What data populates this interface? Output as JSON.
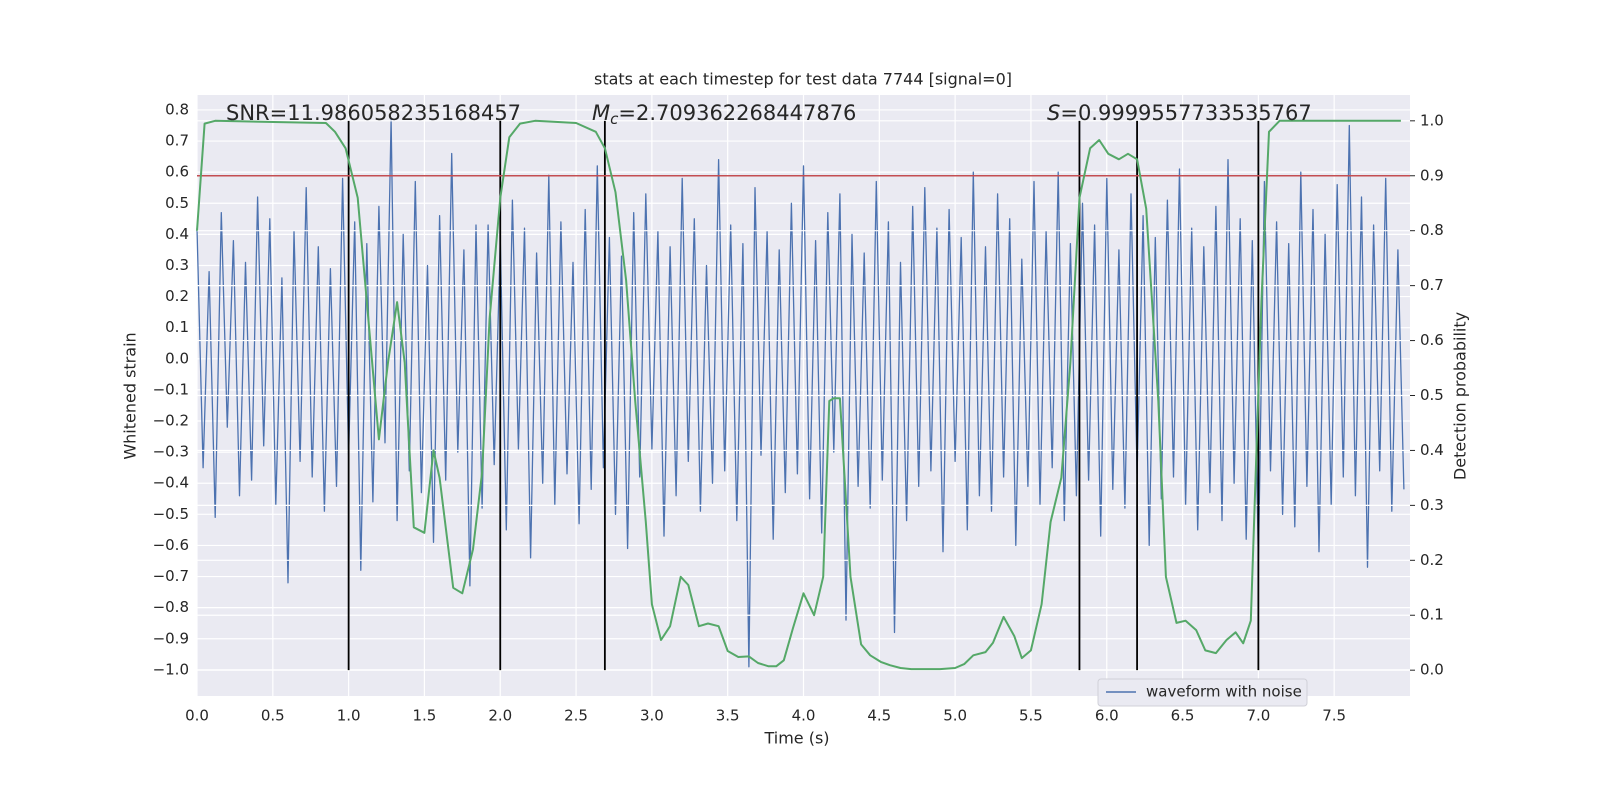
{
  "chart_data": {
    "type": "line",
    "title": "stats at each timestep for test data 7744 [signal=0]",
    "xlabel": "Time (s)",
    "ylabel": "Whitened strain",
    "y2label": "Detection probability",
    "xlim": [
      0,
      8
    ],
    "ylim": [
      -1.084,
      0.848
    ],
    "y2lim": [
      -0.047,
      1.047
    ],
    "xticks": [
      {
        "value": 0,
        "label": "0.0"
      },
      {
        "value": 0.5,
        "label": "0.5"
      },
      {
        "value": 1,
        "label": "1.0"
      },
      {
        "value": 1.5,
        "label": "1.5"
      },
      {
        "value": 2,
        "label": "2.0"
      },
      {
        "value": 2.5,
        "label": "2.5"
      },
      {
        "value": 3,
        "label": "3.0"
      },
      {
        "value": 3.5,
        "label": "3.5"
      },
      {
        "value": 4,
        "label": "4.0"
      },
      {
        "value": 4.5,
        "label": "4.5"
      },
      {
        "value": 5,
        "label": "5.0"
      },
      {
        "value": 5.5,
        "label": "5.5"
      },
      {
        "value": 6,
        "label": "6.0"
      },
      {
        "value": 6.5,
        "label": "6.5"
      },
      {
        "value": 7,
        "label": "7.0"
      },
      {
        "value": 7.5,
        "label": "7.5"
      }
    ],
    "yticks": [
      {
        "value": -1.0,
        "label": "−1.0"
      },
      {
        "value": -0.9,
        "label": "−0.9"
      },
      {
        "value": -0.8,
        "label": "−0.8"
      },
      {
        "value": -0.7,
        "label": "−0.7"
      },
      {
        "value": -0.6,
        "label": "−0.6"
      },
      {
        "value": -0.5,
        "label": "−0.5"
      },
      {
        "value": -0.4,
        "label": "−0.4"
      },
      {
        "value": -0.3,
        "label": "−0.3"
      },
      {
        "value": -0.2,
        "label": "−0.2"
      },
      {
        "value": -0.1,
        "label": "−0.1"
      },
      {
        "value": 0,
        "label": "0.0"
      },
      0.1,
      0.2,
      0.3,
      0.4,
      0.5,
      0.6,
      0.7,
      0.8
    ],
    "y2ticks": [
      {
        "value": 0,
        "label": "0.0"
      },
      0.1,
      0.2,
      0.3,
      0.4,
      0.5,
      0.6,
      0.7,
      0.8,
      0.9,
      {
        "value": 1,
        "label": "1.0"
      }
    ],
    "grid": true,
    "legend": "lower right",
    "series": [
      {
        "name": "waveform with noise",
        "color": "#4c72b0",
        "x": [
          0,
          0.04,
          0.08,
          0.12,
          0.16,
          0.2,
          0.24,
          0.28,
          0.32,
          0.36,
          0.4,
          0.44,
          0.48,
          0.52,
          0.56,
          0.6,
          0.64,
          0.68,
          0.72,
          0.76,
          0.8,
          0.84,
          0.88,
          0.92,
          0.96,
          1,
          1.04,
          1.08,
          1.12,
          1.16,
          1.2,
          1.24,
          1.28,
          1.32,
          1.36,
          1.4,
          1.44,
          1.48,
          1.52,
          1.56,
          1.6,
          1.64,
          1.68,
          1.72,
          1.76,
          1.8,
          1.84,
          1.88,
          1.92,
          1.96,
          2,
          2.04,
          2.08,
          2.12,
          2.16,
          2.2,
          2.24,
          2.28,
          2.32,
          2.36,
          2.4,
          2.44,
          2.48,
          2.52,
          2.56,
          2.6,
          2.64,
          2.68,
          2.72,
          2.76,
          2.8,
          2.84,
          2.88,
          2.92,
          2.96,
          3,
          3.04,
          3.08,
          3.12,
          3.16,
          3.2,
          3.24,
          3.28,
          3.32,
          3.36,
          3.4,
          3.44,
          3.48,
          3.52,
          3.56,
          3.6,
          3.64,
          3.68,
          3.72,
          3.76,
          3.8,
          3.84,
          3.88,
          3.92,
          3.96,
          4,
          4.04,
          4.08,
          4.12,
          4.16,
          4.2,
          4.24,
          4.28,
          4.32,
          4.36,
          4.4,
          4.44,
          4.48,
          4.52,
          4.56,
          4.6,
          4.64,
          4.68,
          4.72,
          4.76,
          4.8,
          4.84,
          4.88,
          4.92,
          4.96,
          5,
          5.04,
          5.08,
          5.12,
          5.16,
          5.2,
          5.24,
          5.28,
          5.32,
          5.36,
          5.4,
          5.44,
          5.48,
          5.52,
          5.56,
          5.6,
          5.64,
          5.68,
          5.72,
          5.76,
          5.8,
          5.84,
          5.88,
          5.92,
          5.96,
          6,
          6.04,
          6.08,
          6.12,
          6.16,
          6.2,
          6.24,
          6.28,
          6.32,
          6.36,
          6.4,
          6.44,
          6.48,
          6.52,
          6.56,
          6.6,
          6.64,
          6.68,
          6.72,
          6.76,
          6.8,
          6.84,
          6.88,
          6.92,
          6.96,
          7,
          7.04,
          7.08,
          7.12,
          7.16,
          7.2,
          7.24,
          7.28,
          7.32,
          7.36,
          7.4,
          7.44,
          7.48,
          7.52,
          7.56,
          7.6,
          7.64,
          7.68,
          7.72,
          7.76,
          7.8,
          7.84,
          7.88,
          7.92,
          7.96
        ],
        "values": [
          0.42,
          -0.35,
          0.28,
          -0.51,
          0.47,
          -0.22,
          0.38,
          -0.44,
          0.31,
          -0.39,
          0.52,
          -0.28,
          0.45,
          -0.47,
          0.26,
          -0.72,
          0.41,
          -0.33,
          0.55,
          -0.38,
          0.36,
          -0.49,
          0.29,
          -0.41,
          0.58,
          -0.31,
          0.44,
          -0.68,
          0.37,
          -0.46,
          0.49,
          -0.27,
          0.77,
          -0.52,
          0.4,
          -0.36,
          0.57,
          -0.43,
          0.3,
          -0.59,
          0.46,
          -0.39,
          0.66,
          -0.3,
          0.35,
          -0.73,
          0.43,
          -0.48,
          0.43,
          -0.34,
          0.38,
          -0.55,
          0.51,
          -0.29,
          0.42,
          -0.64,
          0.34,
          -0.4,
          0.59,
          -0.47,
          0.44,
          -0.37,
          0.31,
          -0.53,
          0.48,
          -0.42,
          0.62,
          -0.35,
          0.39,
          -0.5,
          0.33,
          -0.61,
          0.47,
          -0.38,
          0.53,
          -0.29,
          0.41,
          -0.57,
          0.36,
          -0.44,
          0.58,
          -0.33,
          0.45,
          -0.49,
          0.3,
          -0.4,
          0.64,
          -0.36,
          0.43,
          -0.52,
          0.37,
          -0.99,
          0.55,
          -0.31,
          0.41,
          -0.58,
          0.35,
          -0.43,
          0.5,
          -0.37,
          0.62,
          -0.45,
          0.38,
          -0.56,
          0.47,
          -0.3,
          0.53,
          -0.84,
          0.4,
          -0.41,
          0.34,
          -0.48,
          0.57,
          -0.39,
          0.44,
          -0.88,
          0.31,
          -0.52,
          0.49,
          -0.41,
          0.55,
          -0.36,
          0.42,
          -0.62,
          0.48,
          -0.33,
          0.39,
          -0.55,
          0.6,
          -0.44,
          0.36,
          -0.49,
          0.53,
          -0.38,
          0.45,
          -0.6,
          0.32,
          -0.41,
          0.57,
          -0.47,
          0.41,
          -0.35,
          0.6,
          -0.52,
          0.37,
          -0.44,
          0.5,
          -0.39,
          0.43,
          -0.57,
          0.58,
          -0.42,
          0.35,
          -0.48,
          0.53,
          -0.37,
          0.46,
          -0.6,
          0.39,
          -0.45,
          0.51,
          -0.38,
          0.61,
          -0.47,
          0.42,
          -0.55,
          0.36,
          -0.43,
          0.49,
          -0.52,
          0.64,
          -0.4,
          0.45,
          -0.58,
          0.38,
          -0.65,
          0.57,
          -0.36,
          0.44,
          -0.5,
          0.37,
          -0.54,
          0.6,
          -0.41,
          0.48,
          -0.62,
          0.4,
          -0.47,
          0.56,
          -0.38,
          0.75,
          -0.44,
          0.52,
          -0.67,
          0.43,
          -0.36,
          0.58,
          -0.49,
          0.35,
          -0.42
        ]
      },
      {
        "color": "#55a868",
        "axis": "y2",
        "x": [
          0,
          0.05,
          0.12,
          0.85,
          0.91,
          0.98,
          1.06,
          1.2,
          1.26,
          1.32,
          1.37,
          1.39,
          1.43,
          1.5,
          1.56,
          1.6,
          1.69,
          1.75,
          1.82,
          1.88,
          1.93,
          2.0,
          2.06,
          2.13,
          2.23,
          2.5,
          2.63,
          2.69,
          2.76,
          2.83,
          2.89,
          2.96,
          3.0,
          3.06,
          3.12,
          3.19,
          3.24,
          3.31,
          3.37,
          3.44,
          3.5,
          3.57,
          3.64,
          3.7,
          3.77,
          3.82,
          3.87,
          3.93,
          4.0,
          4.07,
          4.13,
          4.17,
          4.2,
          4.24,
          4.31,
          4.38,
          4.44,
          4.51,
          4.57,
          4.64,
          4.71,
          4.9,
          5.0,
          5.06,
          5.12,
          5.2,
          5.25,
          5.32,
          5.39,
          5.44,
          5.5,
          5.57,
          5.63,
          5.7,
          5.76,
          5.82,
          5.89,
          5.95,
          6.01,
          6.08,
          6.14,
          6.2,
          6.26,
          6.34,
          6.39,
          6.46,
          6.52,
          6.59,
          6.65,
          6.72,
          6.79,
          6.85,
          6.9,
          6.95,
          7.02,
          7.07,
          7.14,
          7.94
        ],
        "values": [
          0.8,
          0.995,
          1.0,
          0.996,
          0.98,
          0.95,
          0.86,
          0.42,
          0.56,
          0.67,
          0.56,
          0.455,
          0.26,
          0.25,
          0.4,
          0.35,
          0.15,
          0.14,
          0.22,
          0.36,
          0.64,
          0.86,
          0.97,
          0.995,
          1.0,
          0.996,
          0.98,
          0.95,
          0.87,
          0.71,
          0.49,
          0.27,
          0.12,
          0.055,
          0.08,
          0.17,
          0.155,
          0.08,
          0.085,
          0.08,
          0.035,
          0.024,
          0.025,
          0.013,
          0.007,
          0.007,
          0.018,
          0.076,
          0.14,
          0.1,
          0.17,
          0.49,
          0.495,
          0.495,
          0.17,
          0.047,
          0.027,
          0.015,
          0.009,
          0.004,
          0.002,
          0.002,
          0.004,
          0.011,
          0.027,
          0.033,
          0.05,
          0.097,
          0.062,
          0.022,
          0.036,
          0.12,
          0.27,
          0.35,
          0.56,
          0.86,
          0.95,
          0.965,
          0.94,
          0.93,
          0.94,
          0.93,
          0.84,
          0.49,
          0.17,
          0.086,
          0.09,
          0.073,
          0.036,
          0.031,
          0.055,
          0.069,
          0.049,
          0.09,
          0.67,
          0.98,
          1.0,
          1.0
        ]
      }
    ],
    "hlines": [
      {
        "value": 0.9,
        "axis": "y2",
        "color": "#c44e52"
      }
    ],
    "vlines": {
      "x": [
        1.0,
        2.0,
        2.69,
        5.82,
        6.2,
        7.0
      ],
      "ymin": 0,
      "ymax": 1,
      "axis": "y2",
      "color": "#000000"
    },
    "annotations": [
      {
        "text": "SNR=11.986058235168457"
      },
      {
        "symbol": "M",
        "subscript": "c",
        "text": "=2.709362268447876"
      },
      {
        "symbol": "S",
        "text": "=0.9999557733535767"
      }
    ]
  }
}
